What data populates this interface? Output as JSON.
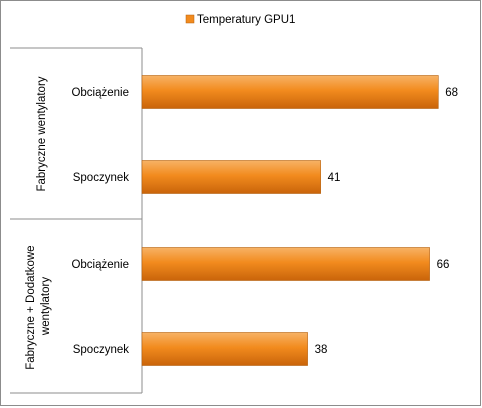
{
  "chart_data": {
    "type": "bar",
    "orientation": "horizontal",
    "legend": {
      "position": "top",
      "entries": [
        "Temperatury GPU1"
      ]
    },
    "groups": [
      {
        "label": "Fabryczne wentylatory",
        "categories": [
          "Obciążenie",
          "Spoczynek"
        ]
      },
      {
        "label": "Fabryczne + Dodatkowe wentylatory",
        "categories": [
          "Obciążenie",
          "Spoczynek"
        ]
      }
    ],
    "categories": [
      "Obciążenie",
      "Spoczynek",
      "Obciążenie",
      "Spoczynek"
    ],
    "series": [
      {
        "name": "Temperatury GPU1",
        "values": [
          68,
          41,
          66,
          38
        ],
        "color": "#f28b1e"
      }
    ],
    "data_labels": [
      "68",
      "41",
      "66",
      "38"
    ],
    "xlim": [
      0,
      70
    ],
    "grid": false,
    "title": "",
    "xlabel": "",
    "ylabel": ""
  }
}
